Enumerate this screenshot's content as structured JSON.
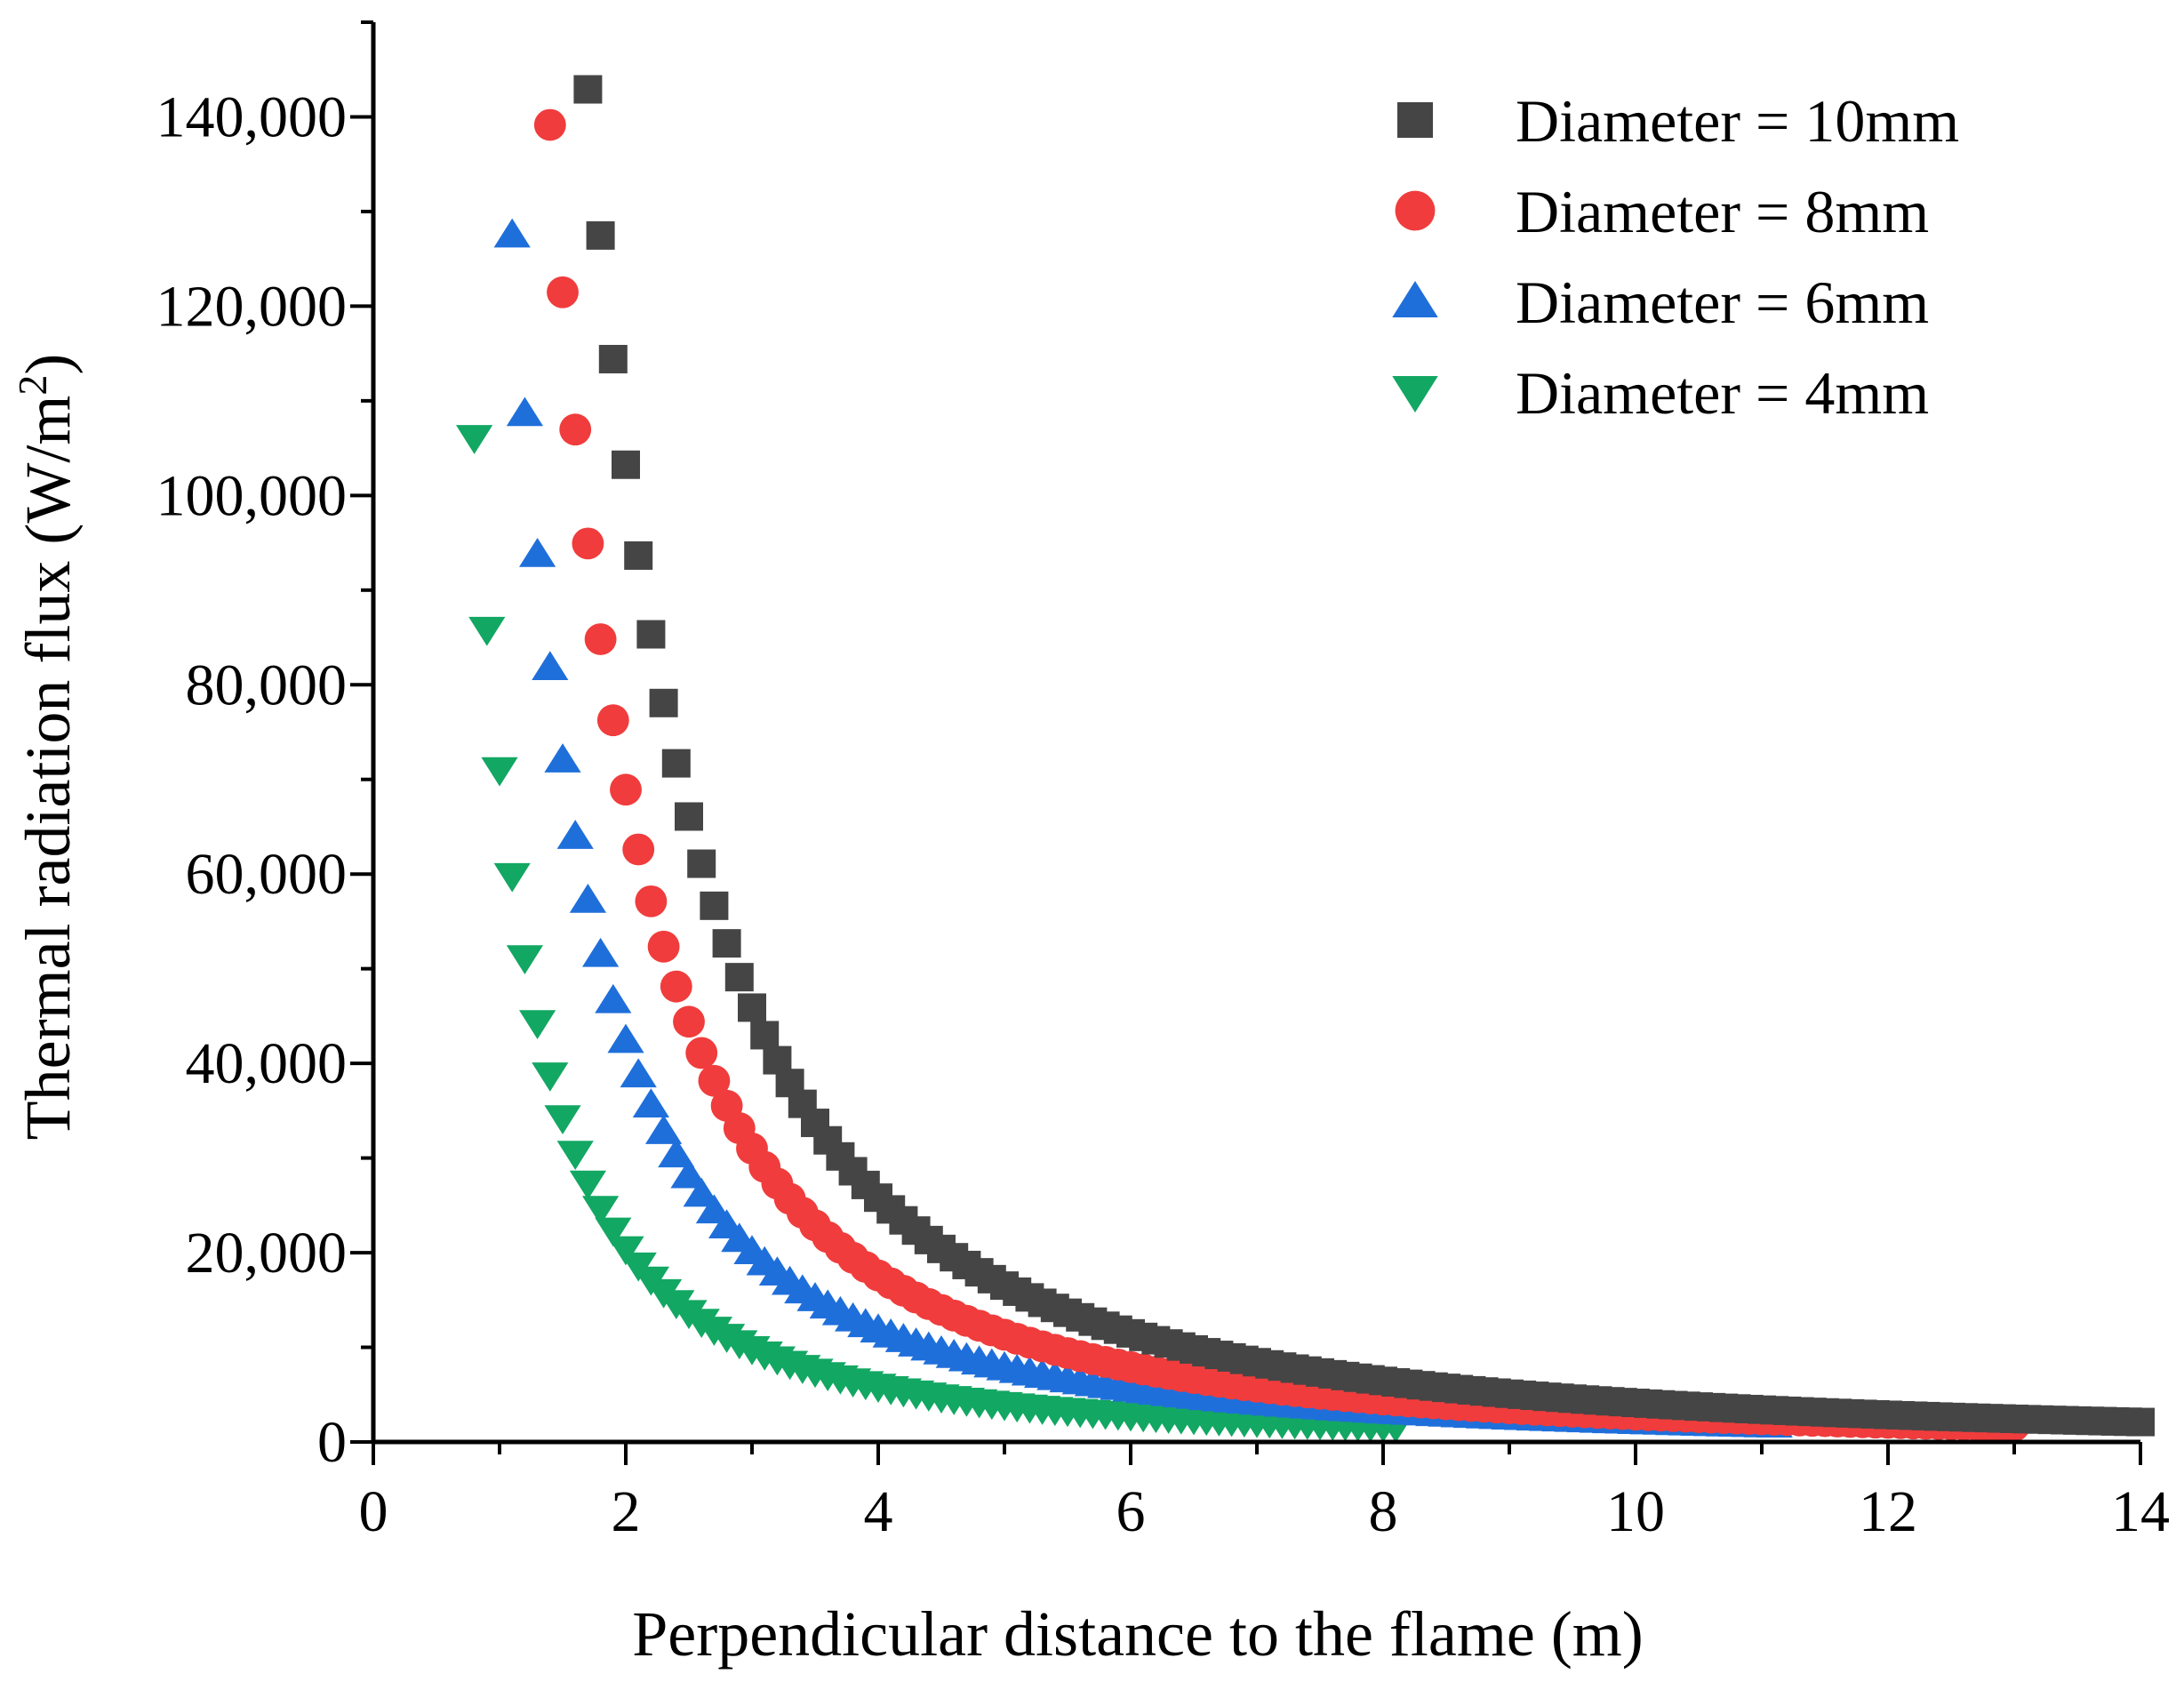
{
  "chart_data": {
    "type": "scatter",
    "title": "",
    "xlabel": "Perpendicular distance to the flame (m)",
    "ylabel_main": "Thermal radiation flux (W/m",
    "ylabel_sup": "2",
    "ylabel_close": ")",
    "xlim": [
      0,
      14
    ],
    "ylim": [
      0,
      150000
    ],
    "x_ticks": [
      0,
      2,
      4,
      6,
      8,
      10,
      12,
      14
    ],
    "x_tick_labels": [
      "0",
      "2",
      "4",
      "6",
      "8",
      "10",
      "12",
      "14"
    ],
    "y_ticks": [
      0,
      20000,
      40000,
      60000,
      80000,
      100000,
      120000,
      140000
    ],
    "y_tick_labels": [
      "0",
      "20,000",
      "40,000",
      "60,000",
      "80,000",
      "100,000",
      "120,000",
      "140,000"
    ],
    "legend_position": "top-right",
    "series": [
      {
        "name": "Diameter = 10mm",
        "marker": "square",
        "color": "#454545",
        "x_start": 1.7,
        "x_end": 14.0,
        "x_step": 0.1,
        "k": 413000,
        "exp": 2.0
      },
      {
        "name": "Diameter = 8mm",
        "marker": "circle",
        "color": "#f03c3c",
        "x_start": 1.4,
        "x_end": 13.0,
        "x_step": 0.1,
        "k": 270000,
        "exp": 1.97
      },
      {
        "name": "Diameter = 6mm",
        "marker": "triangle-up",
        "color": "#1f6fdb",
        "x_start": 1.1,
        "x_end": 11.1,
        "x_step": 0.1,
        "k": 152000,
        "exp": 1.84
      },
      {
        "name": "Diameter = 4mm",
        "marker": "triangle-down",
        "color": "#12a763",
        "x_start": 0.8,
        "x_end": 8.1,
        "x_step": 0.1,
        "k": 71000,
        "exp": 1.8
      }
    ]
  }
}
